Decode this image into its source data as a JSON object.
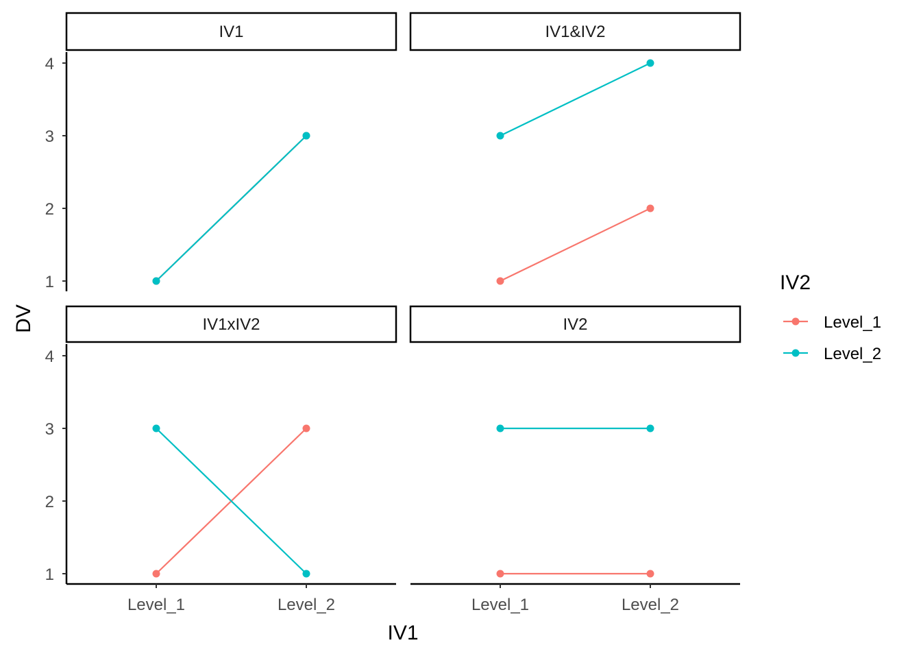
{
  "chart_data": {
    "type": "line",
    "xlabel": "IV1",
    "ylabel": "DV",
    "categories": [
      "Level_1",
      "Level_2"
    ],
    "y_ticks": [
      1,
      2,
      3,
      4
    ],
    "ylim": [
      0.85,
      4.15
    ],
    "legend": {
      "title": "IV2",
      "placement": "right",
      "entries": [
        "Level_1",
        "Level_2"
      ]
    },
    "colors": {
      "Level_1": "#F8766D",
      "Level_2": "#00BFC4"
    },
    "panels": [
      {
        "strip": "IV1",
        "series": [
          {
            "name": "Level_1",
            "values": [
              1,
              3
            ]
          },
          {
            "name": "Level_2",
            "values": [
              1,
              3
            ]
          }
        ]
      },
      {
        "strip": "IV1&IV2",
        "series": [
          {
            "name": "Level_1",
            "values": [
              1,
              2
            ]
          },
          {
            "name": "Level_2",
            "values": [
              3,
              4
            ]
          }
        ]
      },
      {
        "strip": "IV1xIV2",
        "series": [
          {
            "name": "Level_1",
            "values": [
              1,
              3
            ]
          },
          {
            "name": "Level_2",
            "values": [
              3,
              1
            ]
          }
        ]
      },
      {
        "strip": "IV2",
        "series": [
          {
            "name": "Level_1",
            "values": [
              1,
              1
            ]
          },
          {
            "name": "Level_2",
            "values": [
              3,
              3
            ]
          }
        ]
      }
    ]
  }
}
